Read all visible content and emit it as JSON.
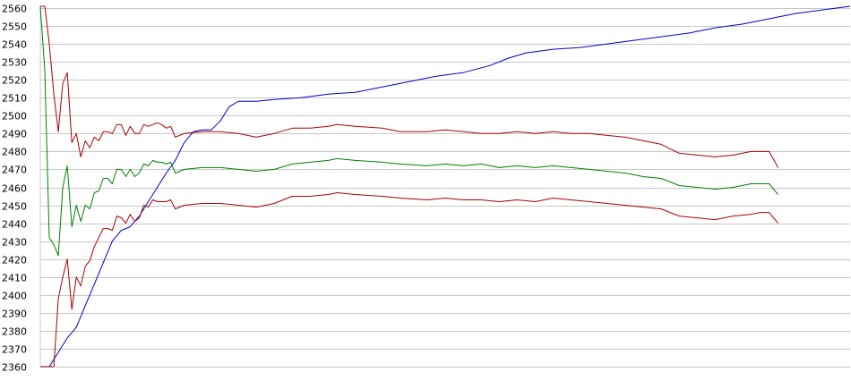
{
  "chart_data": {
    "type": "line",
    "title": "",
    "xlabel": "",
    "ylabel": "",
    "ylim": [
      2360,
      2560
    ],
    "xlim": [
      0,
      180
    ],
    "grid": true,
    "legend": "none",
    "yticks": [
      "2560",
      "2550",
      "2540",
      "2530",
      "2520",
      "2510",
      "2500",
      "2490",
      "2480",
      "2470",
      "2460",
      "2450",
      "2440",
      "2430",
      "2420",
      "2410",
      "2400",
      "2390",
      "2380",
      "2370",
      "2360"
    ],
    "series": [
      {
        "color": "#0000cc",
        "points": [
          [
            0,
            2360
          ],
          [
            2,
            2360
          ],
          [
            4,
            2368
          ],
          [
            6,
            2376
          ],
          [
            8,
            2382
          ],
          [
            10,
            2394
          ],
          [
            12,
            2406
          ],
          [
            14,
            2418
          ],
          [
            16,
            2430
          ],
          [
            18,
            2436
          ],
          [
            20,
            2438
          ],
          [
            22,
            2444
          ],
          [
            24,
            2452
          ],
          [
            26,
            2460
          ],
          [
            28,
            2468
          ],
          [
            30,
            2475
          ],
          [
            32,
            2485
          ],
          [
            34,
            2491
          ],
          [
            36,
            2492
          ],
          [
            38,
            2492
          ],
          [
            40,
            2497
          ],
          [
            42,
            2505
          ],
          [
            44,
            2508
          ],
          [
            48,
            2508
          ],
          [
            52,
            2509
          ],
          [
            58,
            2510
          ],
          [
            64,
            2512
          ],
          [
            70,
            2513
          ],
          [
            76,
            2516
          ],
          [
            82,
            2519
          ],
          [
            88,
            2522
          ],
          [
            94,
            2524
          ],
          [
            100,
            2528
          ],
          [
            104,
            2532
          ],
          [
            108,
            2535
          ],
          [
            114,
            2537
          ],
          [
            120,
            2538
          ],
          [
            126,
            2540
          ],
          [
            132,
            2542
          ],
          [
            138,
            2544
          ],
          [
            144,
            2546
          ],
          [
            150,
            2549
          ],
          [
            156,
            2551
          ],
          [
            162,
            2554
          ],
          [
            168,
            2557
          ],
          [
            174,
            2559
          ],
          [
            180,
            2561
          ]
        ]
      },
      {
        "color": "#008000",
        "points": [
          [
            0,
            2561
          ],
          [
            1,
            2525
          ],
          [
            2,
            2432
          ],
          [
            3,
            2428
          ],
          [
            4,
            2422
          ],
          [
            5,
            2460
          ],
          [
            6,
            2472
          ],
          [
            7,
            2438
          ],
          [
            8,
            2450
          ],
          [
            9,
            2441
          ],
          [
            10,
            2450
          ],
          [
            11,
            2448
          ],
          [
            12,
            2457
          ],
          [
            13,
            2458
          ],
          [
            14,
            2465
          ],
          [
            15,
            2465
          ],
          [
            16,
            2462
          ],
          [
            17,
            2470
          ],
          [
            18,
            2470
          ],
          [
            19,
            2466
          ],
          [
            20,
            2470
          ],
          [
            21,
            2466
          ],
          [
            22,
            2468
          ],
          [
            23,
            2473
          ],
          [
            24,
            2472
          ],
          [
            25,
            2475
          ],
          [
            26,
            2474
          ],
          [
            27,
            2474
          ],
          [
            28,
            2473
          ],
          [
            29,
            2474
          ],
          [
            30,
            2468
          ],
          [
            32,
            2470
          ],
          [
            36,
            2471
          ],
          [
            40,
            2471
          ],
          [
            44,
            2470
          ],
          [
            48,
            2469
          ],
          [
            52,
            2470
          ],
          [
            56,
            2473
          ],
          [
            60,
            2474
          ],
          [
            64,
            2475
          ],
          [
            66,
            2476
          ],
          [
            70,
            2475
          ],
          [
            76,
            2474
          ],
          [
            80,
            2473
          ],
          [
            86,
            2472
          ],
          [
            90,
            2473
          ],
          [
            94,
            2472
          ],
          [
            98,
            2473
          ],
          [
            102,
            2471
          ],
          [
            106,
            2472
          ],
          [
            110,
            2471
          ],
          [
            114,
            2472
          ],
          [
            118,
            2471
          ],
          [
            122,
            2470
          ],
          [
            126,
            2469
          ],
          [
            130,
            2468
          ],
          [
            134,
            2466
          ],
          [
            138,
            2465
          ],
          [
            142,
            2461
          ],
          [
            146,
            2460
          ],
          [
            150,
            2459
          ],
          [
            154,
            2460
          ],
          [
            158,
            2462
          ],
          [
            160,
            2462
          ],
          [
            162,
            2462
          ],
          [
            164,
            2456
          ]
        ]
      },
      {
        "color": "#aa0000",
        "points": [
          [
            0,
            2561
          ],
          [
            1,
            2561
          ],
          [
            2,
            2540
          ],
          [
            3,
            2512
          ],
          [
            4,
            2491
          ],
          [
            5,
            2518
          ],
          [
            6,
            2524
          ],
          [
            7,
            2485
          ],
          [
            8,
            2490
          ],
          [
            9,
            2477
          ],
          [
            10,
            2486
          ],
          [
            11,
            2482
          ],
          [
            12,
            2488
          ],
          [
            13,
            2486
          ],
          [
            14,
            2491
          ],
          [
            15,
            2491
          ],
          [
            16,
            2490
          ],
          [
            17,
            2495
          ],
          [
            18,
            2495
          ],
          [
            19,
            2489
          ],
          [
            20,
            2494
          ],
          [
            21,
            2490
          ],
          [
            22,
            2490
          ],
          [
            23,
            2495
          ],
          [
            24,
            2494
          ],
          [
            25,
            2495
          ],
          [
            26,
            2496
          ],
          [
            27,
            2495
          ],
          [
            28,
            2493
          ],
          [
            29,
            2494
          ],
          [
            30,
            2488
          ],
          [
            32,
            2490
          ],
          [
            36,
            2491
          ],
          [
            40,
            2491
          ],
          [
            44,
            2490
          ],
          [
            48,
            2488
          ],
          [
            52,
            2490
          ],
          [
            56,
            2493
          ],
          [
            60,
            2493
          ],
          [
            64,
            2494
          ],
          [
            66,
            2495
          ],
          [
            70,
            2494
          ],
          [
            76,
            2493
          ],
          [
            80,
            2491
          ],
          [
            86,
            2491
          ],
          [
            90,
            2492
          ],
          [
            94,
            2491
          ],
          [
            98,
            2490
          ],
          [
            102,
            2490
          ],
          [
            106,
            2491
          ],
          [
            110,
            2490
          ],
          [
            114,
            2491
          ],
          [
            118,
            2490
          ],
          [
            122,
            2490
          ],
          [
            126,
            2489
          ],
          [
            130,
            2488
          ],
          [
            134,
            2486
          ],
          [
            138,
            2484
          ],
          [
            142,
            2479
          ],
          [
            146,
            2478
          ],
          [
            150,
            2477
          ],
          [
            154,
            2478
          ],
          [
            158,
            2480
          ],
          [
            160,
            2480
          ],
          [
            162,
            2480
          ],
          [
            164,
            2471
          ]
        ]
      },
      {
        "color": "#aa0000",
        "points": [
          [
            0,
            2360
          ],
          [
            1,
            2360
          ],
          [
            2,
            2360
          ],
          [
            3,
            2360
          ],
          [
            4,
            2398
          ],
          [
            5,
            2410
          ],
          [
            6,
            2420
          ],
          [
            7,
            2392
          ],
          [
            8,
            2410
          ],
          [
            9,
            2405
          ],
          [
            10,
            2416
          ],
          [
            11,
            2419
          ],
          [
            12,
            2427
          ],
          [
            13,
            2432
          ],
          [
            14,
            2437
          ],
          [
            15,
            2437
          ],
          [
            16,
            2436
          ],
          [
            17,
            2444
          ],
          [
            18,
            2443
          ],
          [
            19,
            2440
          ],
          [
            20,
            2445
          ],
          [
            21,
            2441
          ],
          [
            22,
            2443
          ],
          [
            23,
            2450
          ],
          [
            24,
            2449
          ],
          [
            25,
            2453
          ],
          [
            26,
            2452
          ],
          [
            27,
            2452
          ],
          [
            28,
            2452
          ],
          [
            29,
            2453
          ],
          [
            30,
            2448
          ],
          [
            32,
            2450
          ],
          [
            36,
            2451
          ],
          [
            40,
            2451
          ],
          [
            44,
            2450
          ],
          [
            48,
            2449
          ],
          [
            52,
            2451
          ],
          [
            56,
            2455
          ],
          [
            60,
            2455
          ],
          [
            64,
            2456
          ],
          [
            66,
            2457
          ],
          [
            70,
            2456
          ],
          [
            76,
            2455
          ],
          [
            80,
            2454
          ],
          [
            86,
            2453
          ],
          [
            90,
            2454
          ],
          [
            94,
            2453
          ],
          [
            98,
            2453
          ],
          [
            102,
            2452
          ],
          [
            106,
            2453
          ],
          [
            110,
            2452
          ],
          [
            114,
            2454
          ],
          [
            118,
            2453
          ],
          [
            122,
            2452
          ],
          [
            126,
            2451
          ],
          [
            130,
            2450
          ],
          [
            134,
            2449
          ],
          [
            138,
            2448
          ],
          [
            142,
            2444
          ],
          [
            146,
            2443
          ],
          [
            150,
            2442
          ],
          [
            154,
            2444
          ],
          [
            158,
            2445
          ],
          [
            160,
            2446
          ],
          [
            162,
            2446
          ],
          [
            164,
            2440
          ]
        ]
      }
    ]
  }
}
